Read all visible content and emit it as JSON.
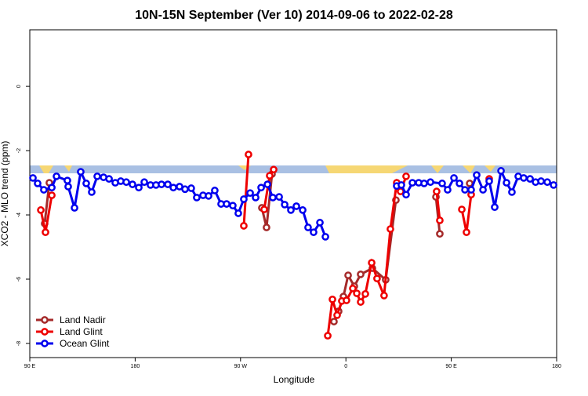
{
  "chart_data": {
    "type": "line",
    "title": "10N-15N September (Ver 10)   2014-09-06 to 2022-02-28",
    "xlabel": "Longitude",
    "ylabel": "XCO2 - MLO trend (ppm)",
    "xlim": [
      90,
      540
    ],
    "ylim": [
      -8.44,
      1.76
    ],
    "xticks": [
      {
        "value": 90,
        "label": "90 E"
      },
      180,
      {
        "value": 270,
        "label": "90 W"
      },
      {
        "value": 360,
        "label": "0"
      },
      {
        "value": 450,
        "label": "90 E"
      },
      {
        "value": 540,
        "label": "180"
      }
    ],
    "yticks": [
      0,
      -2,
      -4,
      -6,
      -8
    ],
    "legend": "lower left",
    "series": [
      {
        "name": "Land Nadir",
        "color": "#a52a2a",
        "x": [
          102.7,
          106.7,
          null,
          288.2,
          292.2,
          296.9,
          null,
          349.8,
          353.8,
          357.9,
          361.9,
          367.2,
          372.6,
          382.6,
          394.0,
          402.7,
          null,
          436.9,
          440.2,
          null,
          465.7
        ],
        "values": [
          -4.27,
          -3.0,
          null,
          -3.78,
          -4.39,
          -2.73,
          null,
          -7.32,
          -7.0,
          -6.54,
          -5.88,
          -6.22,
          -5.85,
          -5.66,
          -6.02,
          -3.54,
          null,
          -3.44,
          -4.59,
          null,
          -3.02
        ]
      },
      {
        "name": "Land Glint",
        "color": "#ee0000",
        "x": [
          99.4,
          103.4,
          108.8,
          null,
          272.8,
          276.8,
          null,
          290.2,
          294.9,
          298.3,
          null,
          344.5,
          348.5,
          352.5,
          356.5,
          360.5,
          365.9,
          369.3,
          372.6,
          376.6,
          382.0,
          386.6,
          392.6,
          398.0,
          403.4,
          406.7,
          411.4,
          null,
          437.5,
          440.2,
          null,
          459.0,
          463.0,
          467.0,
          null,
          482.4
        ],
        "values": [
          -3.85,
          -4.54,
          -3.39,
          null,
          -4.34,
          -2.12,
          null,
          -3.83,
          -2.78,
          -2.59,
          null,
          -7.76,
          -6.63,
          -7.12,
          -6.68,
          -6.66,
          -6.29,
          -6.44,
          -6.71,
          -6.46,
          -5.49,
          -5.98,
          -6.51,
          -4.44,
          -3.0,
          -3.27,
          -2.8,
          null,
          -3.27,
          -4.17,
          null,
          -3.83,
          -4.54,
          -3.37,
          null,
          -2.88
        ]
      },
      {
        "name": "Ocean Glint",
        "color": "#0000ee",
        "x": [
          92.7,
          96.7,
          102.0,
          108.8,
          112.8,
          122.1,
          122.8,
          128.2,
          133.5,
          138.2,
          142.9,
          147.6,
          153.0,
          157.7,
          163.0,
          167.7,
          172.4,
          177.7,
          183.1,
          187.8,
          193.1,
          197.8,
          202.5,
          207.9,
          212.6,
          217.9,
          222.6,
          227.9,
          232.6,
          238.0,
          242.7,
          248.0,
          253.4,
          258.1,
          263.4,
          268.1,
          272.8,
          278.2,
          282.9,
          287.6,
          293.0,
          297.6,
          303.0,
          307.7,
          313.0,
          317.7,
          323.1,
          327.7,
          332.4,
          337.8,
          342.5,
          null,
          403.4,
          407.4,
          411.4,
          416.8,
          422.2,
          426.8,
          432.2,
          442.2,
          446.9,
          452.3,
          457.0,
          461.7,
          467.0,
          471.7,
          477.1,
          482.4,
          487.1,
          492.5,
          497.2,
          501.8,
          507.2,
          511.9,
          517.3,
          522.0,
          526.7,
          532.0,
          537.4
        ],
        "values": [
          -2.85,
          -3.02,
          -3.22,
          -3.15,
          -2.8,
          -2.93,
          -3.12,
          -3.78,
          -2.66,
          -3.02,
          -3.29,
          -2.8,
          -2.83,
          -2.88,
          -3.0,
          -2.95,
          -2.98,
          -3.05,
          -3.15,
          -2.98,
          -3.07,
          -3.07,
          -3.05,
          -3.05,
          -3.15,
          -3.12,
          -3.2,
          -3.17,
          -3.46,
          -3.39,
          -3.41,
          -3.24,
          -3.66,
          -3.66,
          -3.71,
          -3.95,
          -3.51,
          -3.32,
          -3.46,
          -3.15,
          -3.05,
          -3.46,
          -3.44,
          -3.68,
          -3.85,
          -3.73,
          -3.85,
          -4.39,
          -4.54,
          -4.24,
          -4.68,
          null,
          -3.1,
          -3.07,
          -3.37,
          -3.0,
          -3.0,
          -3.02,
          -2.98,
          -3.02,
          -3.22,
          -2.85,
          -3.02,
          -3.22,
          -3.22,
          -2.76,
          -3.22,
          -2.95,
          -3.76,
          -2.63,
          -3.0,
          -3.29,
          -2.8,
          -2.85,
          -2.88,
          -2.98,
          -2.95,
          -2.98,
          -3.07
        ]
      }
    ]
  }
}
